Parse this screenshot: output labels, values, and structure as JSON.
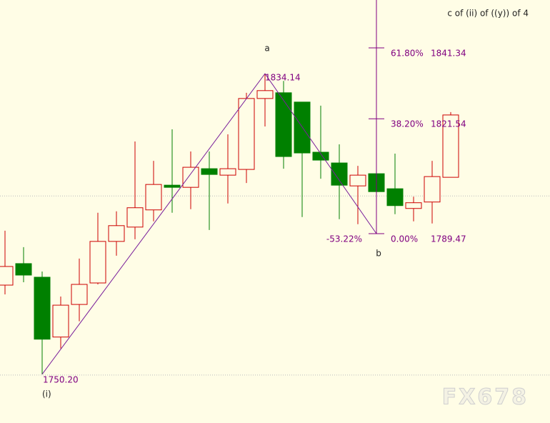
{
  "chart_data": {
    "type": "candlestick",
    "title": "c of (ii) of ((y)) of 4",
    "ylim": [
      1736.6,
      1854.7
    ],
    "hlines": [
      1800,
      1750
    ],
    "up_color": "#cc0000",
    "down_color": "#008000",
    "wave_color": "#7a1f9a",
    "fib_color": "#800080",
    "series": {
      "open": [
        1775.1,
        1781.1,
        1777.3,
        1760.6,
        1769.7,
        1775.7,
        1787.3,
        1791.3,
        1796.1,
        1803.0,
        1802.4,
        1807.6,
        1805.8,
        1807.4,
        1827.2,
        1828.8,
        1826.2,
        1812.2,
        1809.2,
        1802.8,
        1806.2,
        1802.0,
        1796.5,
        1798.3,
        1805.2
      ],
      "high": [
        1790.3,
        1785.7,
        1778.9,
        1771.9,
        1782.5,
        1795.3,
        1795.7,
        1815.2,
        1809.8,
        1818.6,
        1812.4,
        1812.4,
        1817.2,
        1828.8,
        1834.14,
        1832.1,
        1826.2,
        1825.2,
        1814.4,
        1808.4,
        1811.8,
        1811.8,
        1799.8,
        1809.8,
        1823.4
      ],
      "low": [
        1772.5,
        1775.9,
        1750.2,
        1757.4,
        1765.0,
        1775.3,
        1783.3,
        1787.9,
        1792.9,
        1795.3,
        1796.3,
        1790.5,
        1797.9,
        1803.6,
        1819.4,
        1807.6,
        1794.1,
        1804.8,
        1793.5,
        1792.1,
        1789.47,
        1794.9,
        1792.9,
        1792.3,
        1805.2
      ],
      "close": [
        1780.3,
        1777.9,
        1760.0,
        1769.5,
        1775.3,
        1787.3,
        1791.7,
        1796.7,
        1803.2,
        1802.4,
        1808.0,
        1806.0,
        1807.6,
        1827.2,
        1829.4,
        1811.0,
        1812.0,
        1810.0,
        1803.0,
        1805.8,
        1801.2,
        1797.3,
        1798.1,
        1805.4,
        1822.6
      ]
    },
    "pivots": [
      {
        "name": "(i)",
        "price": {
          "value": 1750.2,
          "label": "1750.20"
        }
      },
      {
        "name": "a",
        "price": 1834.14
      },
      {
        "name": "b",
        "price": 1789.47
      }
    ],
    "extension": {
      "value": -53.22,
      "label": "-53.22%"
    },
    "fib_levels": [
      {
        "ratio": {
          "value": 61.8,
          "label": "61.80%"
        },
        "price": 1841.34
      },
      {
        "ratio": {
          "value": 38.2,
          "label": "38.20%"
        },
        "price": 1821.54
      },
      {
        "ratio": {
          "value": 0,
          "label": "0.00%"
        },
        "price": 1789.47
      }
    ],
    "watermark": "FX678"
  }
}
